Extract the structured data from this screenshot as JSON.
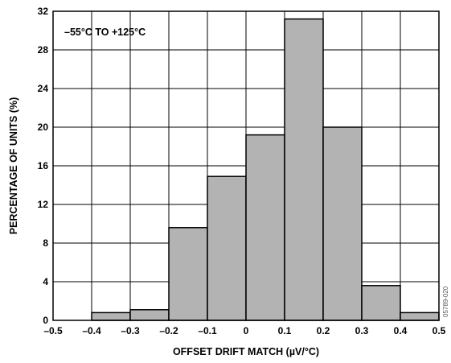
{
  "chart_data": {
    "type": "bar",
    "title": "",
    "annotation": "–55°C TO +125°C",
    "figure_code": "05789-020",
    "xlabel": "OFFSET DRIFT MATCH (µV/°C)",
    "ylabel": "PERCENTAGE OF UNITS (%)",
    "xlim": [
      -0.5,
      0.5
    ],
    "ylim": [
      0,
      32
    ],
    "grid": true,
    "bar_color": "#b3b3b3",
    "xticks": [
      -0.5,
      -0.4,
      -0.3,
      -0.2,
      -0.1,
      0,
      0.1,
      0.2,
      0.3,
      0.4,
      0.5
    ],
    "xtick_labels": [
      "–0.5",
      "–0.4",
      "–0.3",
      "–0.2",
      "–0.1",
      "0",
      "0.1",
      "0.2",
      "0.3",
      "0.4",
      "0.5"
    ],
    "yticks": [
      0,
      4,
      8,
      12,
      16,
      20,
      24,
      28,
      32
    ],
    "ytick_labels": [
      "0",
      "4",
      "8",
      "12",
      "16",
      "20",
      "24",
      "28",
      "32"
    ],
    "bins": [
      {
        "x0": -0.4,
        "x1": -0.3,
        "value": 0.8
      },
      {
        "x0": -0.3,
        "x1": -0.2,
        "value": 1.1
      },
      {
        "x0": -0.2,
        "x1": -0.1,
        "value": 9.6
      },
      {
        "x0": -0.1,
        "x1": 0.0,
        "value": 14.9
      },
      {
        "x0": 0.0,
        "x1": 0.1,
        "value": 19.2
      },
      {
        "x0": 0.1,
        "x1": 0.2,
        "value": 31.2
      },
      {
        "x0": 0.2,
        "x1": 0.3,
        "value": 20.0
      },
      {
        "x0": 0.3,
        "x1": 0.4,
        "value": 3.6
      },
      {
        "x0": 0.4,
        "x1": 0.5,
        "value": 0.8
      }
    ]
  }
}
